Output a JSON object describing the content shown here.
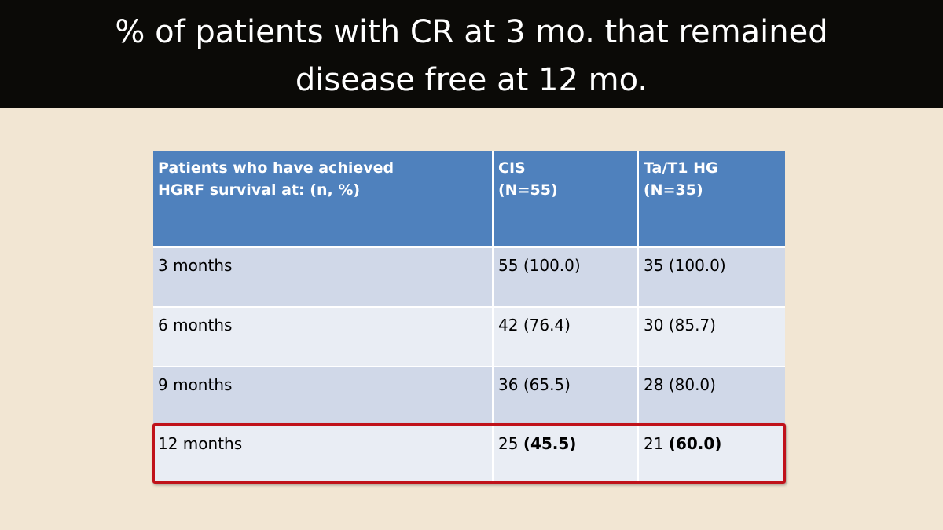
{
  "slide": {
    "title_line1": "% of patients with CR at 3 mo. that remained",
    "title_line2": "disease free at 12 mo."
  },
  "table": {
    "header": {
      "col1_line1": "Patients who have achieved",
      "col1_line2": "HGRF survival at: (n, %)",
      "col2_line1": "CIS",
      "col2_line2": "(N=55)",
      "col3_line1": "Ta/T1 HG",
      "col3_line2": "(N=35)"
    },
    "rows": [
      {
        "label": "3 months",
        "cis_n": "55",
        "cis_pct": "(100.0)",
        "ta_n": "35",
        "ta_pct": "(100.0)"
      },
      {
        "label": "6 months",
        "cis_n": "42",
        "cis_pct": "(76.4)",
        "ta_n": "30",
        "ta_pct": "(85.7)"
      },
      {
        "label": "9 months",
        "cis_n": "36",
        "cis_pct": "(65.5)",
        "ta_n": "28",
        "ta_pct": "(80.0)"
      },
      {
        "label": "12 months",
        "cis_n": "25",
        "cis_pct": "(45.5)",
        "ta_n": "21",
        "ta_pct": "(60.0)"
      }
    ],
    "highlight_color": "#c0121a",
    "header_color": "#4f81bd"
  }
}
